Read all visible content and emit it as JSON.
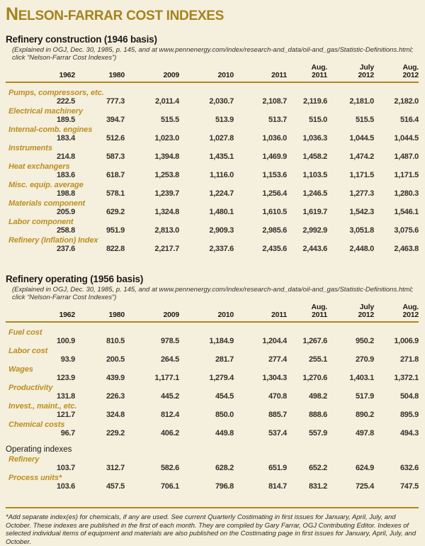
{
  "title": {
    "lead": "N",
    "rest": "ELSON-FARRAR COST INDEXES"
  },
  "colors": {
    "background": "#f5efde",
    "title_gold": "#a5831c",
    "label_gold": "#bc8f1d",
    "rule_gold": "#b1861b",
    "text": "#2b2922"
  },
  "sections": [
    {
      "heading": "Refinery construction (1946 basis)",
      "note": "(Explained in OGJ, Dec. 30, 1985, p. 145, and at www.pennenergy.com/index/research-and_data/oil-and_gas/Statistic-Definitions.html; click “Nelson-Farrar Cost Indexes”)",
      "columns": [
        {
          "top": "",
          "year": "1962"
        },
        {
          "top": "",
          "year": "1980"
        },
        {
          "top": "",
          "year": "2009"
        },
        {
          "top": "",
          "year": "2010"
        },
        {
          "top": "",
          "year": "2011"
        },
        {
          "top": "Aug.",
          "year": "2011"
        },
        {
          "top": "July",
          "year": "2012"
        },
        {
          "top": "Aug.",
          "year": "2012"
        }
      ],
      "rows": [
        {
          "type": "data",
          "label": "Pumps, compressors, etc.",
          "values": [
            "222.5",
            "777.3",
            "2,011.4",
            "2,030.7",
            "2,108.7",
            "2,119.6",
            "2,181.0",
            "2,182.0"
          ]
        },
        {
          "type": "data",
          "label": "Electrical machinery",
          "values": [
            "189.5",
            "394.7",
            "515.5",
            "513.9",
            "513.7",
            "515.0",
            "515.5",
            "516.4"
          ]
        },
        {
          "type": "data",
          "label": "Internal-comb. engines",
          "values": [
            "183.4",
            "512.6",
            "1,023.0",
            "1,027.8",
            "1,036.0",
            "1,036.3",
            "1,044.5",
            "1,044.5"
          ]
        },
        {
          "type": "data",
          "label": "Instruments",
          "values": [
            "214.8",
            "587.3",
            "1,394.8",
            "1,435.1",
            "1,469.9",
            "1,458.2",
            "1,474.2",
            "1,487.0"
          ]
        },
        {
          "type": "data",
          "label": "Heat exchangers",
          "values": [
            "183.6",
            "618.7",
            "1,253.8",
            "1,116.0",
            "1,153.6",
            "1,103.5",
            "1,171.5",
            "1,171.5"
          ]
        },
        {
          "type": "data",
          "label": "Misc. equip. average",
          "values": [
            "198.8",
            "578.1",
            "1,239.7",
            "1,224.7",
            "1,256.4",
            "1,246.5",
            "1,277.3",
            "1,280.3"
          ]
        },
        {
          "type": "data",
          "label": "Materials component",
          "values": [
            "205.9",
            "629.2",
            "1,324.8",
            "1,480.1",
            "1,610.5",
            "1,619.7",
            "1,542.3",
            "1,546.1"
          ]
        },
        {
          "type": "data",
          "label": "Labor component",
          "values": [
            "258.8",
            "951.9",
            "2,813.0",
            "2,909.3",
            "2,985.6",
            "2,992.9",
            "3,051.8",
            "3,075.6"
          ]
        },
        {
          "type": "data",
          "label": "Refinery (Inflation) Index",
          "values": [
            "237.6",
            "822.8",
            "2,217.7",
            "2,337.6",
            "2,435.6",
            "2,443.6",
            "2,448.0",
            "2,463.8"
          ]
        }
      ]
    },
    {
      "heading": "Refinery operating (1956 basis)",
      "note": "(Explained in OGJ, Dec. 30, 1985, p. 145, and at www.pennenergy.com/index/research-and_data/oil-and_gas/Statistic-Definitions.html; click “Nelson-Farrar Cost Indexes”)",
      "columns": [
        {
          "top": "",
          "year": "1962"
        },
        {
          "top": "",
          "year": "1980"
        },
        {
          "top": "",
          "year": "2009"
        },
        {
          "top": "",
          "year": "2010"
        },
        {
          "top": "",
          "year": "2011"
        },
        {
          "top": "Aug.",
          "year": "2011"
        },
        {
          "top": "July",
          "year": "2012"
        },
        {
          "top": "Aug.",
          "year": "2012"
        }
      ],
      "rows": [
        {
          "type": "data",
          "label": "Fuel cost",
          "values": [
            "100.9",
            "810.5",
            "978.5",
            "1,184.9",
            "1,204.4",
            "1,267.6",
            "950.2",
            "1,006.9"
          ]
        },
        {
          "type": "data",
          "label": "Labor cost",
          "values": [
            "93.9",
            "200.5",
            "264.5",
            "281.7",
            "277.4",
            "255.1",
            "270.9",
            "271.8"
          ]
        },
        {
          "type": "data",
          "label": "Wages",
          "values": [
            "123.9",
            "439.9",
            "1,177.1",
            "1,279.4",
            "1,304.3",
            "1,270.6",
            "1,403.1",
            "1,372.1"
          ]
        },
        {
          "type": "data",
          "label": "Productivity",
          "values": [
            "131.8",
            "226.3",
            "445.2",
            "454.5",
            "470.8",
            "498.2",
            "517.9",
            "504.8"
          ]
        },
        {
          "type": "data",
          "label": "Invest., maint., etc.",
          "values": [
            "121.7",
            "324.8",
            "812.4",
            "850.0",
            "885.7",
            "888.6",
            "890.2",
            "895.9"
          ]
        },
        {
          "type": "data",
          "label": "Chemical costs",
          "values": [
            "96.7",
            "229.2",
            "406.2",
            "449.8",
            "537.4",
            "557.9",
            "497.8",
            "494.3"
          ]
        },
        {
          "type": "subhead",
          "label": "Operating indexes"
        },
        {
          "type": "data",
          "label": "Refinery",
          "values": [
            "103.7",
            "312.7",
            "582.6",
            "628.2",
            "651.9",
            "652.2",
            "624.9",
            "632.6"
          ]
        },
        {
          "type": "data",
          "label": "Process units*",
          "values": [
            "103.6",
            "457.5",
            "706.1",
            "796.8",
            "814.7",
            "831.2",
            "725.4",
            "747.5"
          ]
        }
      ]
    }
  ],
  "footnote": "*Add separate index(es) for chemicals, if any are used. See current Quarterly Costimating in first issues for January, April, July, and October. These indexes are published in the first of each month. They are compiled by Gary Farrar, OGJ Contributing Editor. Indexes of selected individual items of equipment and materials are also published on the Costimating page in first issues for January, April, July, and October."
}
